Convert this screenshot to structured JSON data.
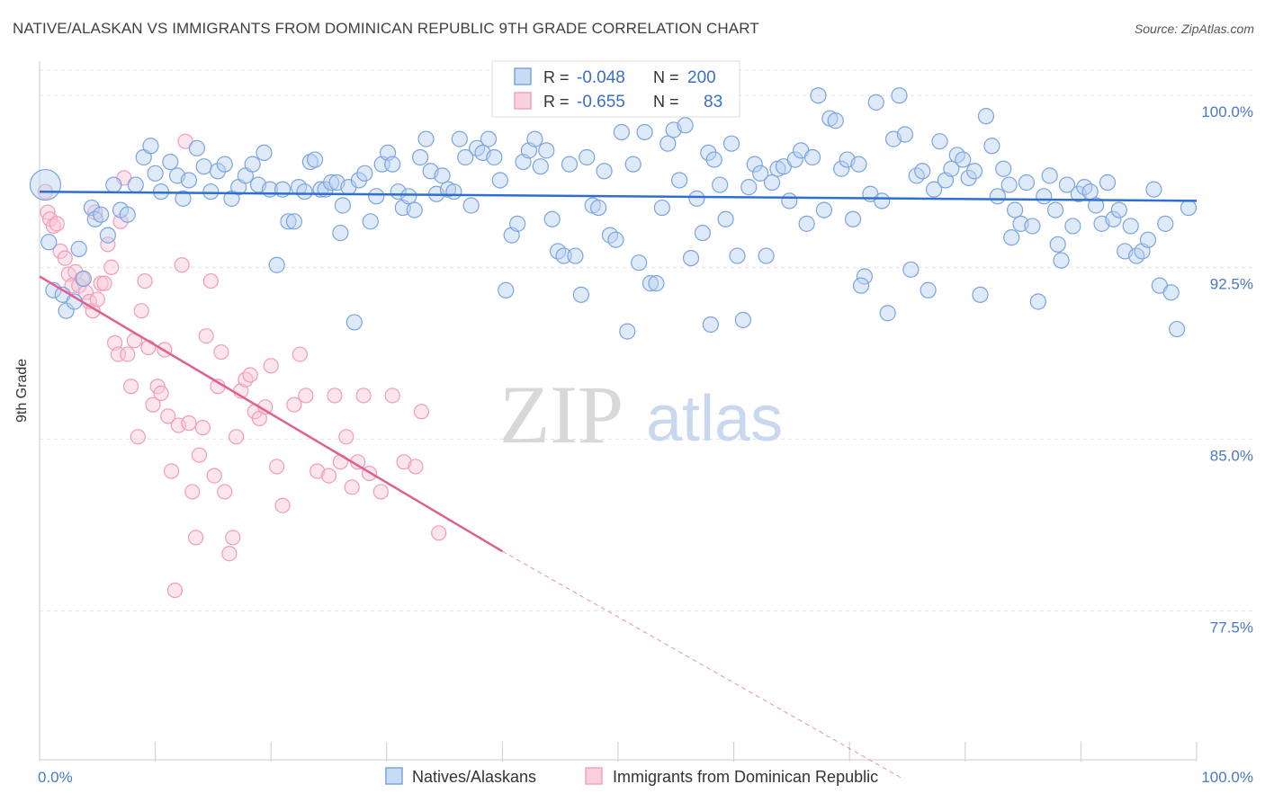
{
  "title": "NATIVE/ALASKAN VS IMMIGRANTS FROM DOMINICAN REPUBLIC 9TH GRADE CORRELATION CHART",
  "source": "Source: ZipAtlas.com",
  "watermark": {
    "zip": "ZIP",
    "atlas": "atlas"
  },
  "legend_box": {
    "rows": [
      {
        "r_label": "R =",
        "r_value": "-0.048",
        "n_label": "N =",
        "n_value": "200"
      },
      {
        "r_label": "R =",
        "r_value": "-0.655",
        "n_label": "N =",
        "n_value": "83"
      }
    ]
  },
  "chart_data": {
    "type": "scatter",
    "title": "NATIVE/ALASKAN VS IMMIGRANTS FROM DOMINICAN REPUBLIC 9TH GRADE CORRELATION CHART",
    "xlabel": "",
    "ylabel": "9th Grade",
    "xlim": [
      0,
      100
    ],
    "ylim": [
      71.0,
      101.5
    ],
    "x_tick_labels": [
      "0.0%",
      "100.0%"
    ],
    "y_ticks": [
      100.0,
      92.5,
      85.0,
      77.5
    ],
    "y_tick_labels": [
      "100.0%",
      "92.5%",
      "85.0%",
      "77.5%"
    ],
    "grid": true,
    "legend_position": "bottom",
    "colors": {
      "native": "#6f9fe0",
      "native_line": "#2f6fd0",
      "dominican": "#f4a0bb",
      "dominican_line": "#e06090",
      "tick_label": "#4a78c8"
    },
    "series": [
      {
        "name": "Natives/Alaskans",
        "r": -0.048,
        "n": 200,
        "trend": {
          "x": [
            0,
            100
          ],
          "y": [
            95.8,
            95.4
          ]
        },
        "points": [
          [
            0.5,
            96.1
          ],
          [
            0.8,
            93.6
          ],
          [
            1.2,
            91.5
          ],
          [
            2.0,
            91.3
          ],
          [
            2.3,
            90.6
          ],
          [
            3.0,
            91.0
          ],
          [
            3.4,
            93.3
          ],
          [
            3.8,
            92.0
          ],
          [
            4.5,
            95.1
          ],
          [
            4.8,
            94.6
          ],
          [
            5.3,
            94.8
          ],
          [
            5.9,
            93.9
          ],
          [
            6.4,
            96.1
          ],
          [
            7.0,
            95.0
          ],
          [
            7.6,
            94.8
          ],
          [
            8.3,
            96.1
          ],
          [
            9.0,
            97.3
          ],
          [
            9.6,
            97.8
          ],
          [
            10.0,
            96.6
          ],
          [
            10.5,
            95.8
          ],
          [
            11.3,
            97.1
          ],
          [
            11.9,
            96.5
          ],
          [
            12.4,
            95.5
          ],
          [
            12.9,
            96.3
          ],
          [
            13.6,
            97.7
          ],
          [
            14.2,
            96.9
          ],
          [
            14.8,
            95.8
          ],
          [
            15.4,
            96.7
          ],
          [
            16.0,
            97.0
          ],
          [
            16.6,
            95.5
          ],
          [
            17.2,
            96.0
          ],
          [
            17.8,
            96.5
          ],
          [
            18.4,
            97.0
          ],
          [
            18.9,
            96.1
          ],
          [
            19.4,
            97.5
          ],
          [
            19.9,
            95.9
          ],
          [
            20.5,
            92.6
          ],
          [
            21.0,
            95.9
          ],
          [
            21.5,
            94.5
          ],
          [
            22.0,
            94.5
          ],
          [
            22.4,
            96.0
          ],
          [
            22.9,
            95.8
          ],
          [
            23.4,
            97.1
          ],
          [
            23.8,
            97.2
          ],
          [
            24.3,
            95.9
          ],
          [
            24.7,
            95.9
          ],
          [
            25.2,
            96.2
          ],
          [
            25.7,
            96.2
          ],
          [
            26.2,
            95.2
          ],
          [
            26.7,
            96.0
          ],
          [
            27.2,
            90.1
          ],
          [
            27.6,
            96.3
          ],
          [
            28.1,
            96.6
          ],
          [
            28.6,
            94.5
          ],
          [
            29.1,
            95.6
          ],
          [
            29.6,
            97.0
          ],
          [
            30.1,
            97.5
          ],
          [
            30.5,
            97.0
          ],
          [
            31.0,
            95.8
          ],
          [
            31.4,
            95.1
          ],
          [
            31.9,
            95.6
          ],
          [
            32.4,
            95.0
          ],
          [
            32.9,
            97.3
          ],
          [
            33.4,
            98.1
          ],
          [
            33.8,
            96.7
          ],
          [
            34.3,
            95.7
          ],
          [
            34.8,
            96.5
          ],
          [
            35.3,
            95.9
          ],
          [
            35.8,
            95.8
          ],
          [
            36.3,
            98.1
          ],
          [
            36.8,
            97.3
          ],
          [
            37.3,
            95.2
          ],
          [
            37.8,
            97.7
          ],
          [
            38.3,
            97.5
          ],
          [
            38.8,
            98.1
          ],
          [
            39.3,
            97.3
          ],
          [
            39.8,
            96.3
          ],
          [
            40.3,
            91.5
          ],
          [
            40.8,
            93.9
          ],
          [
            41.3,
            94.4
          ],
          [
            41.8,
            97.1
          ],
          [
            42.3,
            97.6
          ],
          [
            42.8,
            98.1
          ],
          [
            43.3,
            96.9
          ],
          [
            43.8,
            97.6
          ],
          [
            44.3,
            94.6
          ],
          [
            44.8,
            93.2
          ],
          [
            45.3,
            93.0
          ],
          [
            45.8,
            97.0
          ],
          [
            46.3,
            93.0
          ],
          [
            46.8,
            91.3
          ],
          [
            47.3,
            97.3
          ],
          [
            47.8,
            95.2
          ],
          [
            48.3,
            95.1
          ],
          [
            48.8,
            96.7
          ],
          [
            49.3,
            93.9
          ],
          [
            49.8,
            93.7
          ],
          [
            50.3,
            98.4
          ],
          [
            50.8,
            89.7
          ],
          [
            51.3,
            97.0
          ],
          [
            51.8,
            92.7
          ],
          [
            52.3,
            98.4
          ],
          [
            52.8,
            91.8
          ],
          [
            53.3,
            91.8
          ],
          [
            53.8,
            95.1
          ],
          [
            54.3,
            97.9
          ],
          [
            54.8,
            98.5
          ],
          [
            55.3,
            96.3
          ],
          [
            55.8,
            98.7
          ],
          [
            56.3,
            92.9
          ],
          [
            56.8,
            95.5
          ],
          [
            57.3,
            94.0
          ],
          [
            57.8,
            97.5
          ],
          [
            58.3,
            97.2
          ],
          [
            58.8,
            96.1
          ],
          [
            59.3,
            94.6
          ],
          [
            59.8,
            97.9
          ],
          [
            60.3,
            93.0
          ],
          [
            60.8,
            90.2
          ],
          [
            61.3,
            96.0
          ],
          [
            61.8,
            97.0
          ],
          [
            62.3,
            96.6
          ],
          [
            62.8,
            93.0
          ],
          [
            63.3,
            96.2
          ],
          [
            63.8,
            96.8
          ],
          [
            64.3,
            96.9
          ],
          [
            64.8,
            95.4
          ],
          [
            65.3,
            97.2
          ],
          [
            65.8,
            97.6
          ],
          [
            66.3,
            94.4
          ],
          [
            66.8,
            97.3
          ],
          [
            67.3,
            100.0
          ],
          [
            67.8,
            95.0
          ],
          [
            68.3,
            99.0
          ],
          [
            68.8,
            98.9
          ],
          [
            69.3,
            96.8
          ],
          [
            69.8,
            97.2
          ],
          [
            70.3,
            94.6
          ],
          [
            70.8,
            97.0
          ],
          [
            71.3,
            92.1
          ],
          [
            71.8,
            95.7
          ],
          [
            72.3,
            99.7
          ],
          [
            72.8,
            95.4
          ],
          [
            73.3,
            90.5
          ],
          [
            73.8,
            98.1
          ],
          [
            74.3,
            100.0
          ],
          [
            74.8,
            98.3
          ],
          [
            75.3,
            92.4
          ],
          [
            75.8,
            96.5
          ],
          [
            76.3,
            96.7
          ],
          [
            76.8,
            91.5
          ],
          [
            77.3,
            95.9
          ],
          [
            77.8,
            98.0
          ],
          [
            78.3,
            96.3
          ],
          [
            78.8,
            96.8
          ],
          [
            79.3,
            97.4
          ],
          [
            79.8,
            97.2
          ],
          [
            80.3,
            96.4
          ],
          [
            80.8,
            96.7
          ],
          [
            81.3,
            91.3
          ],
          [
            81.8,
            99.1
          ],
          [
            82.3,
            97.8
          ],
          [
            82.8,
            95.6
          ],
          [
            83.3,
            96.8
          ],
          [
            83.8,
            96.1
          ],
          [
            84.3,
            95.0
          ],
          [
            84.8,
            94.4
          ],
          [
            85.3,
            96.2
          ],
          [
            85.8,
            94.3
          ],
          [
            86.3,
            91.0
          ],
          [
            86.8,
            95.6
          ],
          [
            87.3,
            96.5
          ],
          [
            87.8,
            95.0
          ],
          [
            88.3,
            92.8
          ],
          [
            88.8,
            96.1
          ],
          [
            89.3,
            94.3
          ],
          [
            89.8,
            95.7
          ],
          [
            90.3,
            96.0
          ],
          [
            90.8,
            95.8
          ],
          [
            91.3,
            95.2
          ],
          [
            91.8,
            94.4
          ],
          [
            92.3,
            96.2
          ],
          [
            92.8,
            94.6
          ],
          [
            93.3,
            95.0
          ],
          [
            93.8,
            93.2
          ],
          [
            94.3,
            94.3
          ],
          [
            94.8,
            93.0
          ],
          [
            95.3,
            93.2
          ],
          [
            95.8,
            93.7
          ],
          [
            96.3,
            95.9
          ],
          [
            96.8,
            91.7
          ],
          [
            97.3,
            94.4
          ],
          [
            97.8,
            91.4
          ],
          [
            98.3,
            89.8
          ],
          [
            99.3,
            95.1
          ],
          [
            88.0,
            93.5
          ],
          [
            84.0,
            93.8
          ],
          [
            71.0,
            91.7
          ],
          [
            58.0,
            90.0
          ],
          [
            26.0,
            94.0
          ]
        ]
      },
      {
        "name": "Immigrants from Dominican Republic",
        "r": -0.655,
        "n": 83,
        "trend": {
          "x": [
            0,
            40
          ],
          "y": [
            92.1,
            80.1
          ]
        },
        "trend_dashed": {
          "x": [
            40,
            74.5
          ],
          "y": [
            80.1,
            70.2
          ]
        },
        "points": [
          [
            0.5,
            95.8
          ],
          [
            0.7,
            94.9
          ],
          [
            0.9,
            94.6
          ],
          [
            1.2,
            94.3
          ],
          [
            1.5,
            94.4
          ],
          [
            1.8,
            93.2
          ],
          [
            2.2,
            92.9
          ],
          [
            2.5,
            92.2
          ],
          [
            2.8,
            91.7
          ],
          [
            3.1,
            92.3
          ],
          [
            3.4,
            91.7
          ],
          [
            3.7,
            92.0
          ],
          [
            4.0,
            91.4
          ],
          [
            4.3,
            91.0
          ],
          [
            4.6,
            90.6
          ],
          [
            4.8,
            94.9
          ],
          [
            5.0,
            91.1
          ],
          [
            5.3,
            91.8
          ],
          [
            5.6,
            91.8
          ],
          [
            5.9,
            93.5
          ],
          [
            6.2,
            92.5
          ],
          [
            6.5,
            89.2
          ],
          [
            6.8,
            88.7
          ],
          [
            7.0,
            94.5
          ],
          [
            7.3,
            96.4
          ],
          [
            7.6,
            88.7
          ],
          [
            7.9,
            87.3
          ],
          [
            8.2,
            89.3
          ],
          [
            8.5,
            85.1
          ],
          [
            8.8,
            90.6
          ],
          [
            9.1,
            91.9
          ],
          [
            9.4,
            89.0
          ],
          [
            9.8,
            86.5
          ],
          [
            10.2,
            87.3
          ],
          [
            10.5,
            87.0
          ],
          [
            10.8,
            88.9
          ],
          [
            11.1,
            86.0
          ],
          [
            11.4,
            83.6
          ],
          [
            11.7,
            78.4
          ],
          [
            12.0,
            85.6
          ],
          [
            12.3,
            92.6
          ],
          [
            12.6,
            98.0
          ],
          [
            12.9,
            85.7
          ],
          [
            13.2,
            82.7
          ],
          [
            13.5,
            80.7
          ],
          [
            13.8,
            84.3
          ],
          [
            14.1,
            85.5
          ],
          [
            14.4,
            89.5
          ],
          [
            14.8,
            91.9
          ],
          [
            15.1,
            83.4
          ],
          [
            15.4,
            87.3
          ],
          [
            15.7,
            88.8
          ],
          [
            16.0,
            82.7
          ],
          [
            16.4,
            80.0
          ],
          [
            16.7,
            80.7
          ],
          [
            17.0,
            85.1
          ],
          [
            17.4,
            87.1
          ],
          [
            17.8,
            87.6
          ],
          [
            18.2,
            87.8
          ],
          [
            18.6,
            86.2
          ],
          [
            19.0,
            85.9
          ],
          [
            19.5,
            86.4
          ],
          [
            20.0,
            88.2
          ],
          [
            20.5,
            83.8
          ],
          [
            21.0,
            82.1
          ],
          [
            22.0,
            86.5
          ],
          [
            22.5,
            88.7
          ],
          [
            23.0,
            86.9
          ],
          [
            24.0,
            83.6
          ],
          [
            25.0,
            83.4
          ],
          [
            25.5,
            86.9
          ],
          [
            26.0,
            84.0
          ],
          [
            26.5,
            85.1
          ],
          [
            27.0,
            82.9
          ],
          [
            27.5,
            84.0
          ],
          [
            28.0,
            86.9
          ],
          [
            28.5,
            83.5
          ],
          [
            29.5,
            82.7
          ],
          [
            30.5,
            86.9
          ],
          [
            31.5,
            84.0
          ],
          [
            32.5,
            83.8
          ],
          [
            33.0,
            86.2
          ],
          [
            34.5,
            80.9
          ]
        ]
      }
    ]
  },
  "bottom_legend": {
    "items": [
      "Natives/Alaskans",
      "Immigrants from Dominican Republic"
    ]
  }
}
